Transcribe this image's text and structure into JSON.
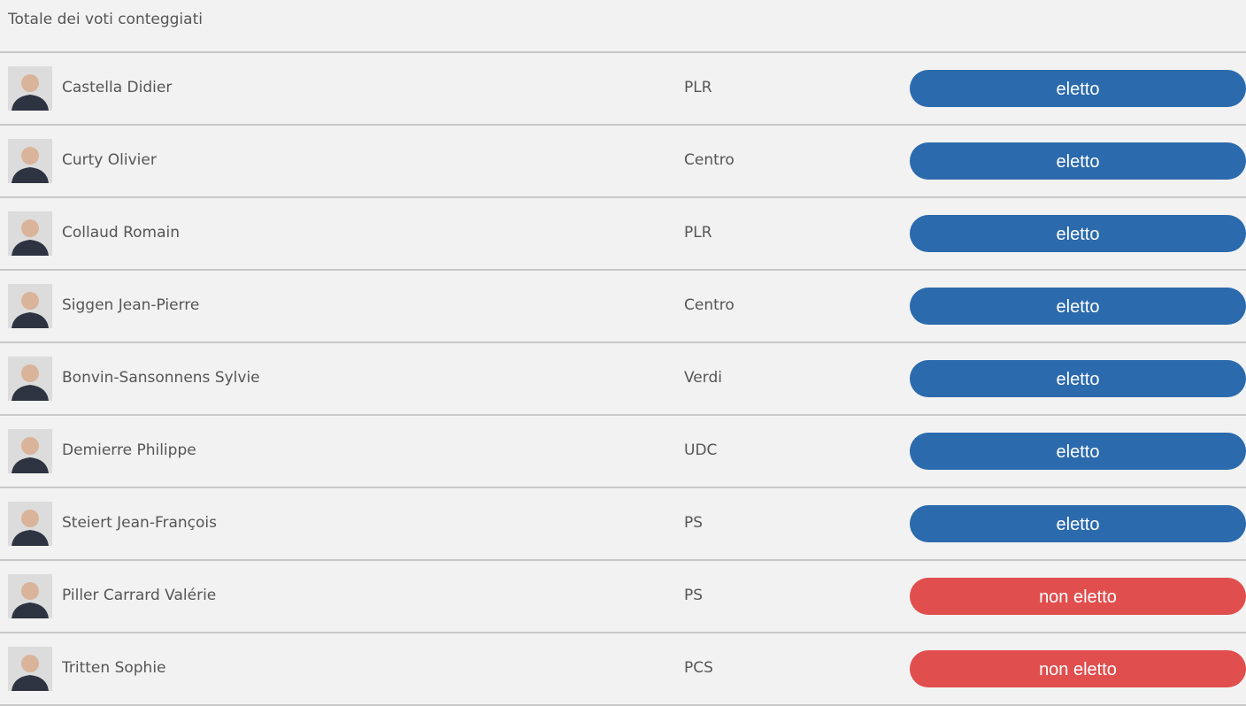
{
  "header": {
    "title": "Totale dei voti conteggiati"
  },
  "rows": [
    {
      "name": "Castella Didier",
      "party": "PLR",
      "status": "eletto",
      "color": "#2b6aac"
    },
    {
      "name": "Curty Olivier",
      "party": "Centro",
      "status": "eletto",
      "color": "#2b6aac"
    },
    {
      "name": "Collaud Romain",
      "party": "PLR",
      "status": "eletto",
      "color": "#2b6aac"
    },
    {
      "name": "Siggen Jean-Pierre",
      "party": "Centro",
      "status": "eletto",
      "color": "#2b6aac"
    },
    {
      "name": "Bonvin-Sansonnens Sylvie",
      "party": "Verdi",
      "status": "eletto",
      "color": "#2b6aac"
    },
    {
      "name": "Demierre Philippe",
      "party": "UDC",
      "status": "eletto",
      "color": "#2b6aac"
    },
    {
      "name": "Steiert Jean-François",
      "party": "PS",
      "status": "eletto",
      "color": "#2b6aac"
    },
    {
      "name": "Piller Carrard Valérie",
      "party": "PS",
      "status": "non eletto",
      "color": "#e04e4e"
    },
    {
      "name": "Tritten Sophie",
      "party": "PCS",
      "status": "non eletto",
      "color": "#e04e4e"
    }
  ]
}
